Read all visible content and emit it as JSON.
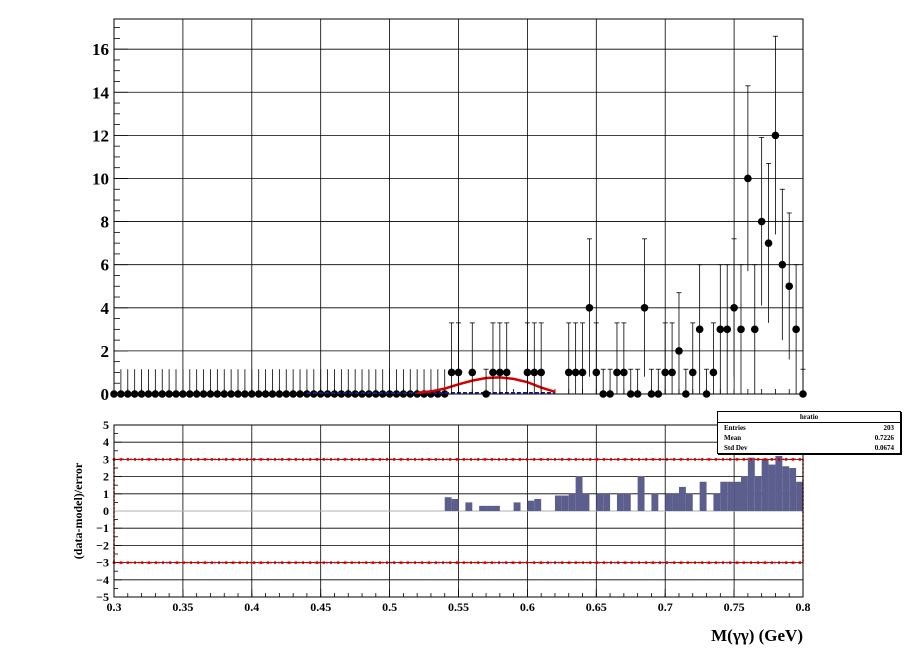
{
  "stats_box": {
    "title": "hratio",
    "rows": [
      {
        "label": "Entries",
        "value": "203"
      },
      {
        "label": "Mean",
        "value": "0.7226"
      },
      {
        "label": "Std Dev",
        "value": "0.0674"
      }
    ]
  },
  "chart_data": [
    {
      "type": "scatter",
      "panel": "top",
      "xlim": [
        0.3,
        0.8
      ],
      "ylim": [
        0,
        17.4
      ],
      "grid": true,
      "yticks": [
        "0",
        "2",
        "4",
        "6",
        "8",
        "10",
        "12",
        "14",
        "16"
      ],
      "points": {
        "x": [
          0.545,
          0.55,
          0.56,
          0.57,
          0.575,
          0.58,
          0.585,
          0.6,
          0.605,
          0.61,
          0.63,
          0.635,
          0.64,
          0.645,
          0.65,
          0.655,
          0.66,
          0.665,
          0.67,
          0.675,
          0.68,
          0.685,
          0.69,
          0.695,
          0.7,
          0.705,
          0.71,
          0.715,
          0.72,
          0.725,
          0.73,
          0.735,
          0.74,
          0.745,
          0.75,
          0.755,
          0.76,
          0.765,
          0.77,
          0.775,
          0.78,
          0.785,
          0.79,
          0.795,
          0.8
        ],
        "y": [
          1,
          1,
          1,
          0,
          1,
          1,
          1,
          1,
          1,
          1,
          1,
          1,
          1,
          4,
          1,
          0,
          0,
          1,
          1,
          0,
          0,
          4,
          0,
          0,
          1,
          1,
          2,
          0,
          1,
          3,
          0,
          1,
          3,
          3,
          4,
          3,
          10,
          3,
          8,
          7,
          12,
          6,
          5,
          3,
          0
        ],
        "err": [
          2.3,
          2.3,
          2.3,
          1.15,
          2.3,
          2.3,
          2.3,
          2.3,
          2.3,
          2.3,
          2.3,
          2.3,
          2.3,
          3.2,
          2.3,
          1.15,
          1.15,
          2.3,
          2.3,
          1.15,
          1.15,
          3.2,
          1.15,
          1.15,
          2.3,
          2.3,
          2.7,
          1.15,
          2.3,
          3.0,
          1.15,
          2.3,
          3.0,
          3.0,
          3.2,
          3.0,
          4.3,
          3.0,
          3.9,
          3.7,
          4.6,
          3.5,
          3.4,
          3.0,
          1.15
        ]
      },
      "zero_points_range": [
        0.3,
        0.545
      ],
      "zero_points_step": 0.005,
      "model_curve": {
        "color": "#d40000",
        "x": [
          0.52,
          0.53,
          0.54,
          0.55,
          0.56,
          0.57,
          0.58,
          0.59,
          0.6,
          0.61,
          0.62
        ],
        "y": [
          0.05,
          0.12,
          0.25,
          0.45,
          0.62,
          0.74,
          0.77,
          0.7,
          0.55,
          0.3,
          0.1
        ]
      }
    },
    {
      "type": "bar",
      "panel": "bottom",
      "xlim": [
        0.3,
        0.8
      ],
      "ylim": [
        -5,
        5
      ],
      "ylabel": "(data-model)/error",
      "xlabel": "M(γγ) (GeV)",
      "xticks": [
        "0.3",
        "0.35",
        "0.4",
        "0.45",
        "0.5",
        "0.55",
        "0.6",
        "0.65",
        "0.7",
        "0.75",
        "0.8"
      ],
      "yticks": [
        "−5",
        "−4",
        "−3",
        "−2",
        "−1",
        "0",
        "1",
        "2",
        "3",
        "4",
        "5"
      ],
      "bin_width": 0.005,
      "bar_color": "#5c5e8e",
      "threshold_lines": [
        3,
        -3
      ],
      "threshold_color": "#d40000",
      "bins": {
        "x": [
          0.54,
          0.545,
          0.555,
          0.565,
          0.57,
          0.575,
          0.59,
          0.6,
          0.605,
          0.62,
          0.625,
          0.63,
          0.635,
          0.64,
          0.65,
          0.655,
          0.665,
          0.67,
          0.68,
          0.69,
          0.7,
          0.705,
          0.71,
          0.715,
          0.725,
          0.735,
          0.74,
          0.745,
          0.75,
          0.755,
          0.76,
          0.765,
          0.77,
          0.775,
          0.78,
          0.785,
          0.79,
          0.795
        ],
        "y": [
          0.8,
          0.7,
          0.5,
          0.3,
          0.3,
          0.3,
          0.5,
          0.6,
          0.7,
          0.9,
          0.9,
          1.0,
          2.0,
          1.0,
          1.0,
          1.0,
          1.0,
          1.0,
          2.0,
          1.0,
          1.0,
          1.0,
          1.4,
          1.0,
          1.7,
          1.0,
          1.7,
          1.7,
          1.7,
          2.0,
          3.1,
          2.0,
          3.0,
          2.7,
          3.2,
          2.6,
          2.5,
          1.7
        ]
      }
    }
  ]
}
